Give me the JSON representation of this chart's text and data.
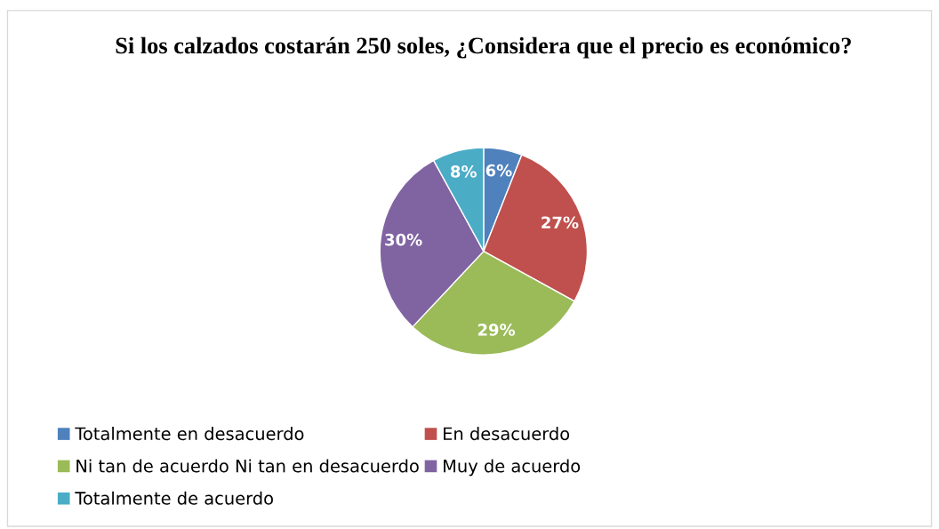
{
  "chart_data": {
    "type": "pie",
    "title": "Si los calzados costarán 250 soles, ¿Considera que el precio es económico?",
    "categories": [
      "Totalmente en desacuerdo",
      "En desacuerdo",
      "Ni tan de acuerdo Ni tan en desacuerdo",
      "Muy de acuerdo",
      "Totalmente de acuerdo"
    ],
    "values": [
      6,
      27,
      29,
      30,
      8
    ],
    "value_labels": [
      "6%",
      "27%",
      "29%",
      "30%",
      "8%"
    ],
    "colors": [
      "#4f81bd",
      "#c0504d",
      "#9bbb59",
      "#8064a2",
      "#4bacc6"
    ],
    "legend": "bottom"
  }
}
